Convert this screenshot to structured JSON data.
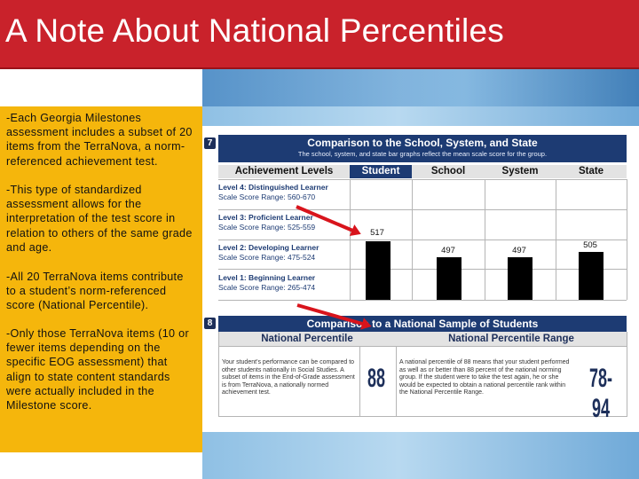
{
  "title": "A Note About National Percentiles",
  "bullets": [
    "-Each Georgia Milestones assessment includes a subset of 20 items from the TerraNova, a norm-referenced achievement test.",
    "-This type of standardized assessment allows for the interpretation of the test score in relation to others of the same grade and age.",
    "-All 20 TerraNova items contribute to a student’s norm-referenced score (National Percentile).",
    "-Only those TerraNova items (10 or fewer items depending on the specific EOG assessment) that align to state content standards were actually included in the Milestone score."
  ],
  "section7": {
    "number": "7",
    "title": "Comparison to the School, System, and State",
    "subtitle": "The school, system, and state bar graphs reflect the mean scale score for the group.",
    "columns": [
      "Achievement Levels",
      "Student",
      "School",
      "System",
      "State"
    ],
    "levels": [
      {
        "name": "Level 4: Distinguished Learner",
        "range": "Scale Score Range: 560-670"
      },
      {
        "name": "Level 3: Proficient Learner",
        "range": "Scale Score Range: 525-559"
      },
      {
        "name": "Level 2: Developing Learner",
        "range": "Scale Score Range: 475-524"
      },
      {
        "name": "Level 1: Beginning Learner",
        "range": "Scale Score Range: 265-474"
      }
    ],
    "values": {
      "student": "517",
      "school": "497",
      "system": "497",
      "state": "505"
    }
  },
  "section8": {
    "number": "8",
    "title": "Comparison to a National Sample of Students",
    "col1": "National Percentile",
    "col2": "National Percentile Range",
    "text1": "Your student’s performance can be compared to other students nationally in Social Studies. A subset of items in the End-of-Grade assessment is from TerraNova, a nationally normed achievement test.",
    "percentile": "88",
    "text2": "A national percentile of 88 means that your student performed as well as or better than 88 percent of the national norming group. If the student were to take the test again, he or she would be expected to obtain a national percentile rank within the National Percentile Range.",
    "range": "78-94"
  },
  "colors": {
    "title_bg": "#c9222b",
    "sidebar_bg": "#f5b60c",
    "report_header": "#1d3b73",
    "arrow": "#d8141c"
  }
}
